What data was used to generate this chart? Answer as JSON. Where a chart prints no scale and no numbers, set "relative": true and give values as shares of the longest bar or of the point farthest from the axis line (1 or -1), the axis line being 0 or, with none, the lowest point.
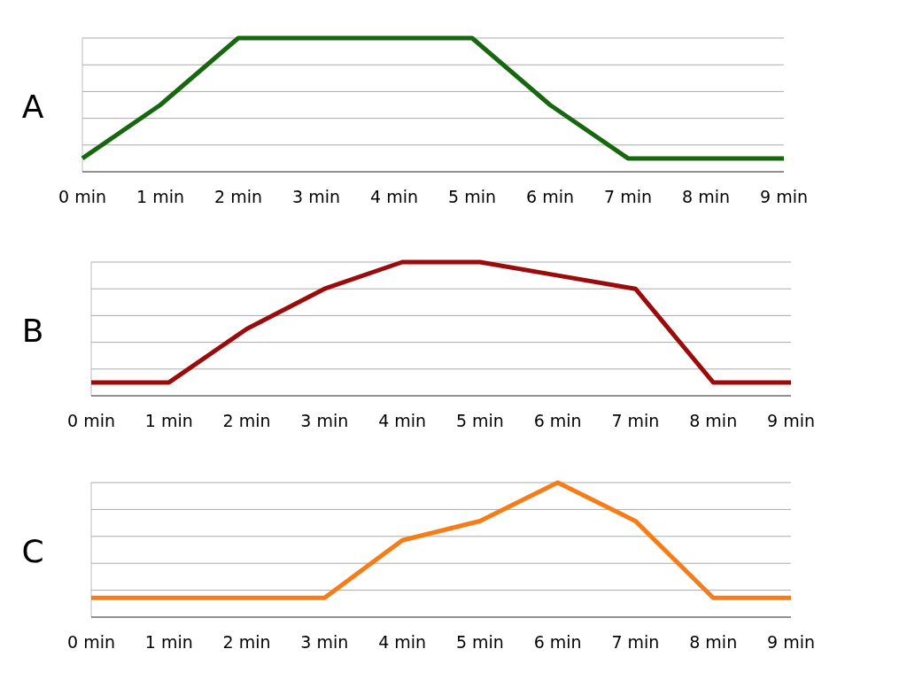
{
  "chart_data": [
    {
      "type": "line",
      "title": "A",
      "relative": true,
      "grid": true,
      "categories": [
        "0 min",
        "1 min",
        "2 min",
        "3 min",
        "4 min",
        "5 min",
        "6 min",
        "7 min",
        "8 min",
        "9 min"
      ],
      "series": [
        {
          "color": "#17670f",
          "values": [
            0.1,
            0.5,
            1,
            1,
            1,
            1,
            0.5,
            0.1,
            0.1,
            0.1
          ]
        }
      ]
    },
    {
      "type": "line",
      "title": "B",
      "relative": true,
      "grid": true,
      "categories": [
        "0 min",
        "1 min",
        "2 min",
        "3 min",
        "4 min",
        "5 min",
        "6 min",
        "7 min",
        "8 min",
        "9 min"
      ],
      "series": [
        {
          "color": "#9b0b0b",
          "values": [
            0.1,
            0.1,
            0.5,
            0.8,
            1,
            1,
            0.9,
            0.8,
            0.1,
            0.1
          ]
        }
      ]
    },
    {
      "type": "line",
      "title": "C",
      "relative": true,
      "grid": true,
      "categories": [
        "0 min",
        "1 min",
        "2 min",
        "3 min",
        "4 min",
        "5 min",
        "6 min",
        "7 min",
        "8 min",
        "9 min"
      ],
      "series": [
        {
          "color": "#f57c16",
          "values": [
            0.143,
            0.143,
            0.143,
            0.143,
            0.571,
            0.714,
            1,
            0.714,
            0.143,
            0.143
          ]
        }
      ]
    }
  ]
}
